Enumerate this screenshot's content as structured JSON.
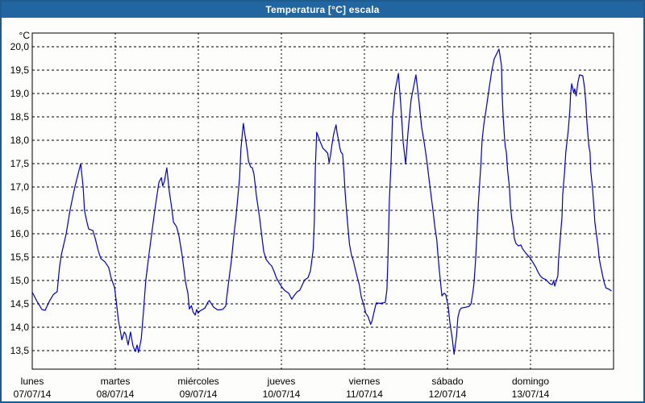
{
  "window": {
    "title": "Temperatura [°C] escala"
  },
  "colors": {
    "titlebar_bg": "#2166a0",
    "titlebar_text": "#ffffff",
    "window_border": "#1f5c8b",
    "background": "#fdfdfb",
    "line": "#0000cc",
    "grid": "#000000",
    "axis_text": "#000000"
  },
  "chart_data": {
    "type": "line",
    "title": "Temperatura [°C] escala",
    "unit_label": "°C",
    "xlabel": "",
    "ylabel": "°C",
    "grid": "dashed",
    "legend_position": "none",
    "ylim": [
      13.1,
      20.29
    ],
    "xlim_hours": [
      0,
      168
    ],
    "y_ticks": [
      {
        "value": 20.0,
        "label": "20,0"
      },
      {
        "value": 19.5,
        "label": "19,5"
      },
      {
        "value": 19.0,
        "label": "19,0"
      },
      {
        "value": 18.5,
        "label": "18,5"
      },
      {
        "value": 18.0,
        "label": "18,0"
      },
      {
        "value": 17.5,
        "label": "17,5"
      },
      {
        "value": 17.0,
        "label": "17,0"
      },
      {
        "value": 16.5,
        "label": "16,5"
      },
      {
        "value": 16.0,
        "label": "16,0"
      },
      {
        "value": 15.5,
        "label": "15,5"
      },
      {
        "value": 15.0,
        "label": "15,0"
      },
      {
        "value": 14.5,
        "label": "14,5"
      },
      {
        "value": 14.0,
        "label": "14,0"
      },
      {
        "value": 13.5,
        "label": "13,5"
      }
    ],
    "x_day_boundaries_hours": [
      24,
      48,
      72,
      96,
      120,
      144
    ],
    "x_ticks": [
      {
        "hour": 0,
        "day": "lunes",
        "date": "07/07/14"
      },
      {
        "hour": 24,
        "day": "martes",
        "date": "08/07/14"
      },
      {
        "hour": 48,
        "day": "miércoles",
        "date": "09/07/14"
      },
      {
        "hour": 72,
        "day": "jueves",
        "date": "10/07/14"
      },
      {
        "hour": 96,
        "day": "viernes",
        "date": "11/07/14"
      },
      {
        "hour": 120,
        "day": "sábado",
        "date": "12/07/14"
      },
      {
        "hour": 144,
        "day": "domingo",
        "date": "13/07/14"
      }
    ],
    "series": [
      {
        "name": "Temperatura",
        "unit": "°C",
        "color": "#0000cc",
        "points_hours_temp": [
          [
            0,
            14.75
          ],
          [
            1.4,
            14.55
          ],
          [
            2.8,
            14.38
          ],
          [
            3.7,
            14.36
          ],
          [
            4.9,
            14.55
          ],
          [
            6.1,
            14.7
          ],
          [
            7.2,
            14.76
          ],
          [
            7.9,
            15.3
          ],
          [
            8.4,
            15.55
          ],
          [
            9.8,
            16.0
          ],
          [
            10.9,
            16.5
          ],
          [
            12.3,
            17.0
          ],
          [
            14,
            17.5
          ],
          [
            14.7,
            17.0
          ],
          [
            15.1,
            16.5
          ],
          [
            15.8,
            16.25
          ],
          [
            16.3,
            16.1
          ],
          [
            17.5,
            16.07
          ],
          [
            18.2,
            15.9
          ],
          [
            19.1,
            15.63
          ],
          [
            19.8,
            15.47
          ],
          [
            21,
            15.4
          ],
          [
            22.1,
            15.28
          ],
          [
            22.8,
            15.05
          ],
          [
            23.8,
            14.85
          ],
          [
            24.2,
            14.6
          ],
          [
            24.9,
            14.15
          ],
          [
            25.9,
            13.73
          ],
          [
            26.6,
            13.9
          ],
          [
            27,
            13.85
          ],
          [
            27.7,
            13.62
          ],
          [
            28.4,
            13.9
          ],
          [
            29.1,
            13.6
          ],
          [
            29.8,
            13.48
          ],
          [
            30.3,
            13.62
          ],
          [
            30.7,
            13.46
          ],
          [
            31.5,
            13.75
          ],
          [
            32.1,
            14.3
          ],
          [
            32.8,
            15.0
          ],
          [
            33.8,
            15.6
          ],
          [
            34.7,
            16.1
          ],
          [
            35.6,
            16.6
          ],
          [
            36.6,
            17.1
          ],
          [
            37.3,
            17.2
          ],
          [
            37.7,
            17.02
          ],
          [
            38.2,
            17.12
          ],
          [
            38.9,
            17.41
          ],
          [
            39.6,
            16.9
          ],
          [
            40.3,
            16.55
          ],
          [
            40.8,
            16.25
          ],
          [
            41.7,
            16.15
          ],
          [
            42.4,
            15.95
          ],
          [
            43.3,
            15.55
          ],
          [
            44.3,
            14.97
          ],
          [
            45,
            14.72
          ],
          [
            45.4,
            14.39
          ],
          [
            46,
            14.46
          ],
          [
            46.5,
            14.32
          ],
          [
            47.1,
            14.26
          ],
          [
            47.5,
            14.38
          ],
          [
            47.9,
            14.3
          ],
          [
            48.5,
            14.35
          ],
          [
            49.2,
            14.38
          ],
          [
            49.9,
            14.41
          ],
          [
            50.8,
            14.54
          ],
          [
            51.2,
            14.57
          ],
          [
            52.4,
            14.43
          ],
          [
            53.6,
            14.37
          ],
          [
            55,
            14.38
          ],
          [
            55.9,
            14.45
          ],
          [
            56.6,
            14.88
          ],
          [
            57.5,
            15.4
          ],
          [
            58.2,
            15.92
          ],
          [
            58.9,
            16.38
          ],
          [
            59.9,
            17.18
          ],
          [
            60.3,
            17.81
          ],
          [
            61,
            18.36
          ],
          [
            61.7,
            18.0
          ],
          [
            62.2,
            17.75
          ],
          [
            62.5,
            17.55
          ],
          [
            63.1,
            17.43
          ],
          [
            63.6,
            17.41
          ],
          [
            64.1,
            17.26
          ],
          [
            64.8,
            16.8
          ],
          [
            65.7,
            16.34
          ],
          [
            66.4,
            15.91
          ],
          [
            66.9,
            15.62
          ],
          [
            67.6,
            15.45
          ],
          [
            68.5,
            15.36
          ],
          [
            69.2,
            15.31
          ],
          [
            69.9,
            15.19
          ],
          [
            70.6,
            15.05
          ],
          [
            71.5,
            14.93
          ],
          [
            72.2,
            14.85
          ],
          [
            72.9,
            14.79
          ],
          [
            74.1,
            14.73
          ],
          [
            75,
            14.6
          ],
          [
            75.7,
            14.68
          ],
          [
            76.6,
            14.76
          ],
          [
            77.3,
            14.79
          ],
          [
            78,
            14.9
          ],
          [
            78.7,
            15.01
          ],
          [
            79.7,
            15.06
          ],
          [
            80.4,
            15.21
          ],
          [
            80.9,
            15.49
          ],
          [
            81.2,
            15.67
          ],
          [
            81.5,
            16.24
          ],
          [
            81.8,
            17.4
          ],
          [
            82.2,
            18.17
          ],
          [
            83.2,
            17.97
          ],
          [
            84,
            17.83
          ],
          [
            84.7,
            17.78
          ],
          [
            85.4,
            17.72
          ],
          [
            85.8,
            17.52
          ],
          [
            86.2,
            17.67
          ],
          [
            86.6,
            17.9
          ],
          [
            87.1,
            18.13
          ],
          [
            87.8,
            18.33
          ],
          [
            88.1,
            18.16
          ],
          [
            88.5,
            18.01
          ],
          [
            88.9,
            17.84
          ],
          [
            89.2,
            17.75
          ],
          [
            89.7,
            17.7
          ],
          [
            90.1,
            17.3
          ],
          [
            90.4,
            16.9
          ],
          [
            90.8,
            16.52
          ],
          [
            91.2,
            16.17
          ],
          [
            91.7,
            15.77
          ],
          [
            92.3,
            15.53
          ],
          [
            92.8,
            15.42
          ],
          [
            93.3,
            15.26
          ],
          [
            93.9,
            15.08
          ],
          [
            94.5,
            14.91
          ],
          [
            95.1,
            14.65
          ],
          [
            95.8,
            14.48
          ],
          [
            96.4,
            14.3
          ],
          [
            97.1,
            14.22
          ],
          [
            97.8,
            14.06
          ],
          [
            98.2,
            14.13
          ],
          [
            98.6,
            14.27
          ],
          [
            99.4,
            14.52
          ],
          [
            100.6,
            14.51
          ],
          [
            102,
            14.53
          ],
          [
            102.5,
            14.8
          ],
          [
            102.8,
            15.5
          ],
          [
            103.2,
            16.7
          ],
          [
            103.7,
            17.5
          ],
          [
            104.1,
            18.47
          ],
          [
            104.8,
            19.04
          ],
          [
            105.8,
            19.43
          ],
          [
            106.5,
            18.76
          ],
          [
            107.2,
            17.95
          ],
          [
            107.9,
            17.49
          ],
          [
            108.6,
            18.18
          ],
          [
            109.5,
            18.87
          ],
          [
            110.9,
            19.4
          ],
          [
            111.8,
            18.81
          ],
          [
            112.5,
            18.3
          ],
          [
            113.4,
            17.89
          ],
          [
            114.1,
            17.52
          ],
          [
            114.8,
            17.09
          ],
          [
            115.7,
            16.57
          ],
          [
            116.4,
            16.11
          ],
          [
            116.9,
            15.88
          ],
          [
            117.2,
            15.59
          ],
          [
            117.6,
            15.25
          ],
          [
            118,
            14.96
          ],
          [
            118.4,
            14.67
          ],
          [
            119,
            14.73
          ],
          [
            119.5,
            14.7
          ],
          [
            120.2,
            14.44
          ],
          [
            120.7,
            14.1
          ],
          [
            121.4,
            13.75
          ],
          [
            121.9,
            13.42
          ],
          [
            122.6,
            13.81
          ],
          [
            123,
            14.21
          ],
          [
            123.5,
            14.36
          ],
          [
            124,
            14.41
          ],
          [
            125.4,
            14.43
          ],
          [
            126.3,
            14.45
          ],
          [
            126.8,
            14.5
          ],
          [
            127.4,
            14.78
          ],
          [
            127.7,
            14.96
          ],
          [
            128.1,
            15.42
          ],
          [
            128.5,
            15.98
          ],
          [
            128.9,
            16.62
          ],
          [
            129.3,
            17.07
          ],
          [
            129.7,
            17.53
          ],
          [
            130,
            17.99
          ],
          [
            130.5,
            18.34
          ],
          [
            131.2,
            18.68
          ],
          [
            132.1,
            19.14
          ],
          [
            132.8,
            19.48
          ],
          [
            133.5,
            19.74
          ],
          [
            134.9,
            19.95
          ],
          [
            135.6,
            19.6
          ],
          [
            135.8,
            18.98
          ],
          [
            136.1,
            18.5
          ],
          [
            136.5,
            18.04
          ],
          [
            136.7,
            17.86
          ],
          [
            137,
            17.75
          ],
          [
            137.4,
            17.34
          ],
          [
            137.9,
            17.0
          ],
          [
            138.2,
            16.6
          ],
          [
            138.6,
            16.31
          ],
          [
            139.1,
            16.08
          ],
          [
            139.3,
            15.91
          ],
          [
            139.8,
            15.79
          ],
          [
            140.5,
            15.74
          ],
          [
            141.2,
            15.76
          ],
          [
            141.7,
            15.68
          ],
          [
            142.6,
            15.59
          ],
          [
            143.3,
            15.53
          ],
          [
            144,
            15.47
          ],
          [
            144.9,
            15.36
          ],
          [
            145.6,
            15.27
          ],
          [
            146.1,
            15.19
          ],
          [
            146.8,
            15.1
          ],
          [
            147.5,
            15.05
          ],
          [
            148.4,
            15.02
          ],
          [
            149.6,
            14.93
          ],
          [
            150.3,
            14.91
          ],
          [
            150.7,
            15.0
          ],
          [
            151,
            14.88
          ],
          [
            151.9,
            15.1
          ],
          [
            152.1,
            15.45
          ],
          [
            152.6,
            15.91
          ],
          [
            153.1,
            16.37
          ],
          [
            153.3,
            16.83
          ],
          [
            153.8,
            17.29
          ],
          [
            154.2,
            17.75
          ],
          [
            154.9,
            18.21
          ],
          [
            155.4,
            18.67
          ],
          [
            155.6,
            19.01
          ],
          [
            155.9,
            19.21
          ],
          [
            156.5,
            19.01
          ],
          [
            156.8,
            19.1
          ],
          [
            157.2,
            18.95
          ],
          [
            157.7,
            19.24
          ],
          [
            158.2,
            19.4
          ],
          [
            159.1,
            19.38
          ],
          [
            159.6,
            19.13
          ],
          [
            160,
            18.78
          ],
          [
            160.3,
            18.38
          ],
          [
            160.7,
            18.01
          ],
          [
            160.9,
            17.86
          ],
          [
            161.2,
            17.75
          ],
          [
            161.4,
            17.34
          ],
          [
            161.9,
            17.0
          ],
          [
            162.3,
            16.6
          ],
          [
            162.6,
            16.25
          ],
          [
            163,
            16.02
          ],
          [
            163.5,
            15.74
          ],
          [
            163.8,
            15.5
          ],
          [
            164.2,
            15.33
          ],
          [
            164.7,
            15.16
          ],
          [
            165,
            15.05
          ],
          [
            165.4,
            14.93
          ],
          [
            165.8,
            14.84
          ],
          [
            166.5,
            14.82
          ],
          [
            167.3,
            14.78
          ]
        ]
      }
    ]
  }
}
